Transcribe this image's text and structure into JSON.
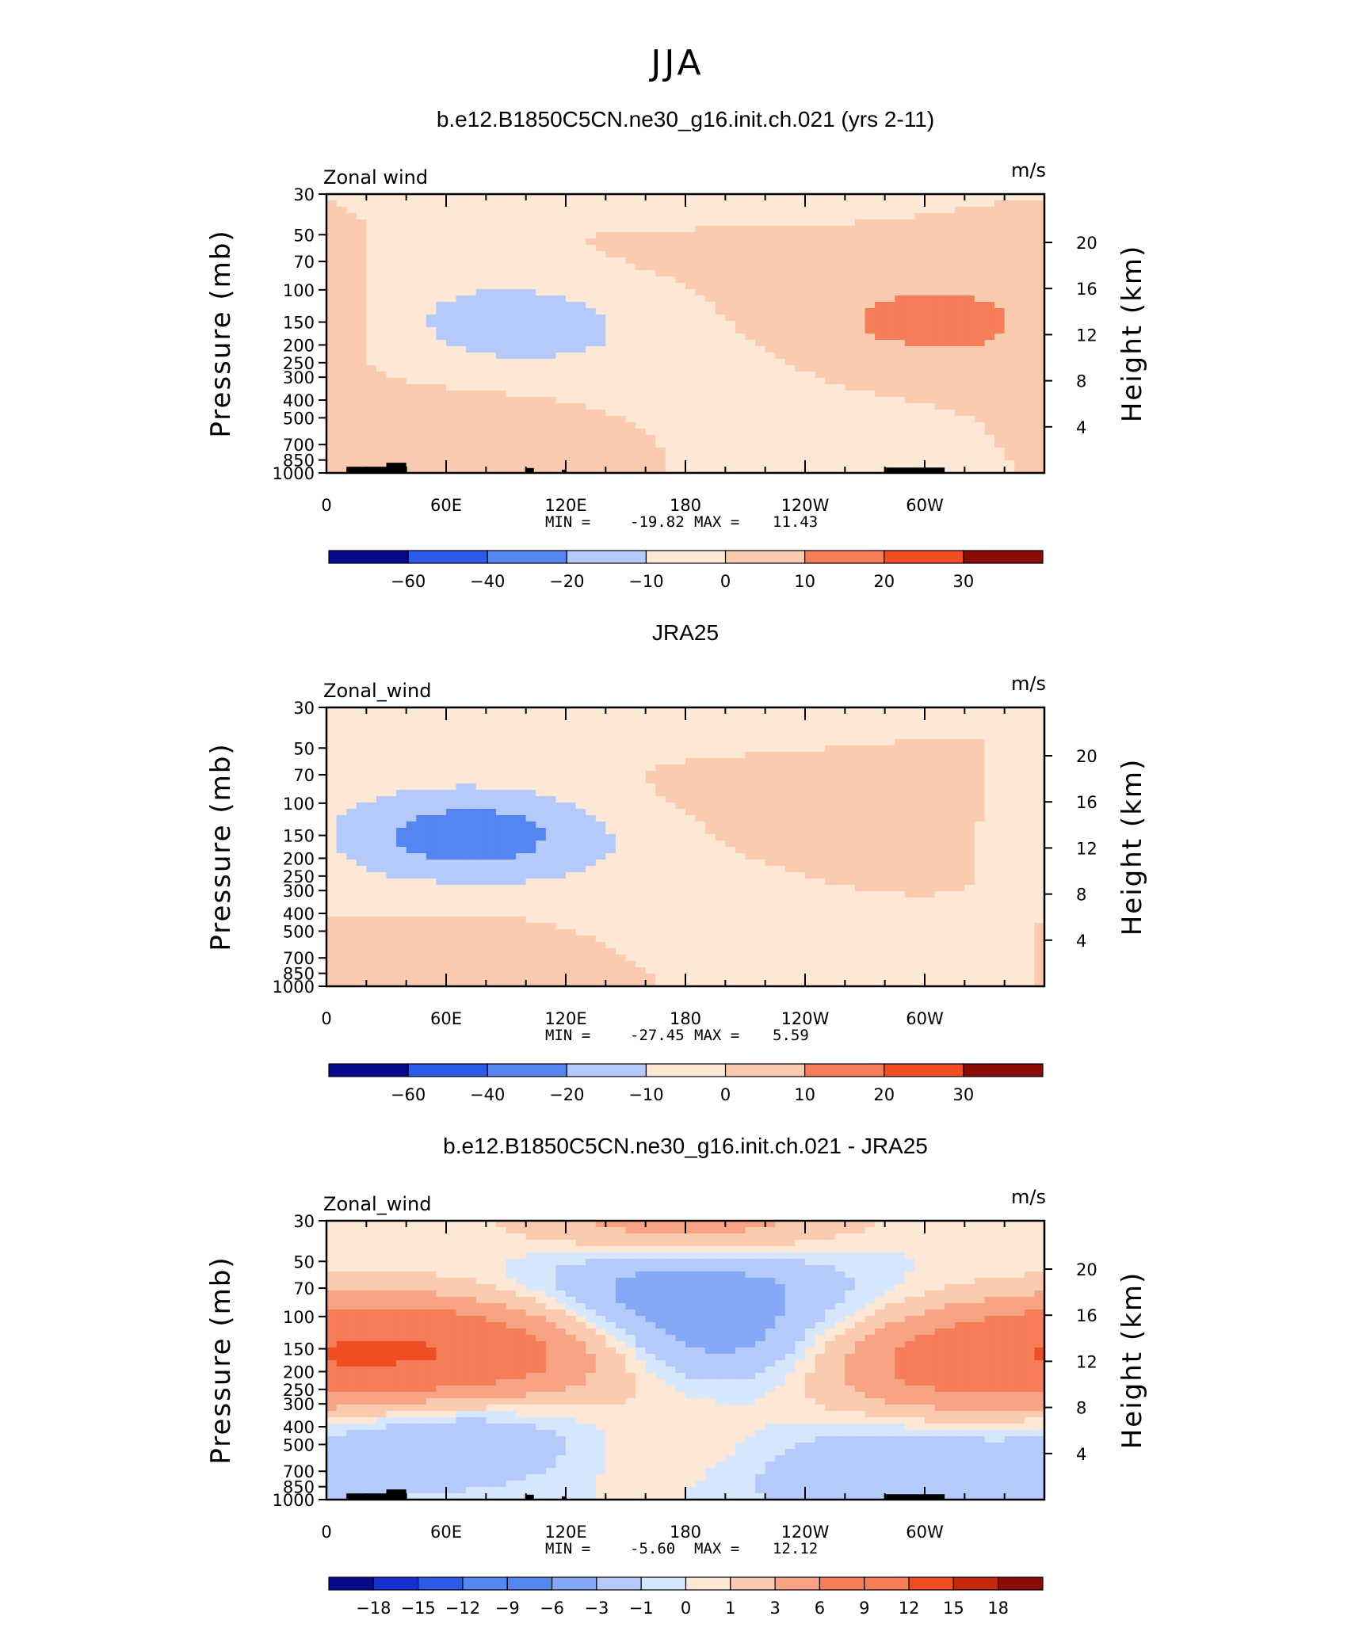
{
  "figure": {
    "title": "JJA"
  },
  "colors": {
    "lev_neg": [
      "#08088c",
      "#1530cf",
      "#2b5be8",
      "#5585f0",
      "#85a8f5",
      "#b4cafa",
      "#d6e6fc"
    ],
    "lev_pos": [
      "#fde8d6",
      "#fbcbb0",
      "#f8a484",
      "#f57d58",
      "#ef4e22",
      "#c62a0c",
      "#8b0a04"
    ],
    "topo": "#000000"
  },
  "chart_data": [
    {
      "type": "heatmap",
      "title": "b.e12.B1850C5CN.ne30_g16.init.ch.021 (yrs 2-11)",
      "left_label": "Zonal wind",
      "units": "m/s",
      "ylabel": "Pressure (mb)",
      "ylabel_right": "Height (km)",
      "y_ticks": [
        "30",
        "50",
        "70",
        "100",
        "150",
        "200",
        "250",
        "300",
        "400",
        "500",
        "700",
        "850",
        "1000"
      ],
      "y_ticks_right": [
        "20",
        "16",
        "12",
        "8",
        "4"
      ],
      "x_ticks": [
        "0",
        "60E",
        "120E",
        "180",
        "120W",
        "60W"
      ],
      "min_label": "MIN =",
      "min_value": "-19.82",
      "max_label": "MAX =",
      "max_value": "11.43",
      "colorbar_labels": [
        "-60",
        "-40",
        "-20",
        "-10",
        "0",
        "10",
        "20",
        "30"
      ],
      "features": [
        {
          "lon": 180,
          "p": 30,
          "v": -4
        },
        {
          "lon": 180,
          "p": 60,
          "v": 3
        },
        {
          "lon": 80,
          "p": 150,
          "v": -18
        },
        {
          "lon": 300,
          "p": 150,
          "v": 11
        },
        {
          "lon": 10,
          "p": 150,
          "v": 6
        },
        {
          "lon": 180,
          "p": 300,
          "v": -4
        },
        {
          "lon": 70,
          "p": 600,
          "v": 6
        },
        {
          "lon": 270,
          "p": 800,
          "v": -3
        }
      ]
    },
    {
      "type": "heatmap",
      "title": "JRA25",
      "left_label": "Zonal_wind",
      "units": "m/s",
      "ylabel": "Pressure (mb)",
      "ylabel_right": "Height (km)",
      "y_ticks": [
        "30",
        "50",
        "70",
        "100",
        "150",
        "200",
        "250",
        "300",
        "400",
        "500",
        "700",
        "850",
        "1000"
      ],
      "y_ticks_right": [
        "20",
        "16",
        "12",
        "8",
        "4"
      ],
      "x_ticks": [
        "0",
        "60E",
        "120E",
        "180",
        "120W",
        "60W"
      ],
      "min_label": "MIN =",
      "min_value": "-27.45",
      "max_label": "MAX =",
      "max_value": "5.59",
      "colorbar_labels": [
        "-60",
        "-40",
        "-20",
        "-10",
        "0",
        "10",
        "20",
        "30"
      ],
      "features": [
        {
          "lon": 180,
          "p": 33,
          "v": -6
        },
        {
          "lon": 200,
          "p": 80,
          "v": 4
        },
        {
          "lon": 70,
          "p": 150,
          "v": -26
        },
        {
          "lon": 300,
          "p": 150,
          "v": 5
        },
        {
          "lon": 180,
          "p": 400,
          "v": -4
        },
        {
          "lon": 70,
          "p": 650,
          "v": 5
        },
        {
          "lon": 300,
          "p": 700,
          "v": -3
        }
      ]
    },
    {
      "type": "heatmap",
      "title": "b.e12.B1850C5CN.ne30_g16.init.ch.021 - JRA25",
      "left_label": "Zonal_wind",
      "units": "m/s",
      "ylabel": "Pressure (mb)",
      "ylabel_right": "Height (km)",
      "y_ticks": [
        "30",
        "50",
        "70",
        "100",
        "150",
        "200",
        "250",
        "300",
        "400",
        "500",
        "700",
        "850",
        "1000"
      ],
      "y_ticks_right": [
        "20",
        "16",
        "12",
        "8",
        "4"
      ],
      "x_ticks": [
        "0",
        "60E",
        "120E",
        "180",
        "120W",
        "60W"
      ],
      "min_label": "MIN =",
      "min_value": "-5.60",
      "max_label": "MAX =",
      "max_value": "12.12",
      "colorbar_labels": [
        "-18",
        "-15",
        "-12",
        "-9",
        "-6",
        "-3",
        "-1",
        "0",
        "1",
        "3",
        "6",
        "9",
        "12",
        "15",
        "18"
      ],
      "features": [
        {
          "lon": 180,
          "p": 30,
          "v": 6
        },
        {
          "lon": 180,
          "p": 60,
          "v": -5
        },
        {
          "lon": 190,
          "p": 150,
          "v": -5
        },
        {
          "lon": 40,
          "p": 150,
          "v": 10
        },
        {
          "lon": 310,
          "p": 180,
          "v": 7
        },
        {
          "lon": 120,
          "p": 180,
          "v": 4
        },
        {
          "lon": 80,
          "p": 450,
          "v": -4
        },
        {
          "lon": 280,
          "p": 700,
          "v": -3
        },
        {
          "lon": 150,
          "p": 500,
          "v": 2
        }
      ]
    }
  ]
}
